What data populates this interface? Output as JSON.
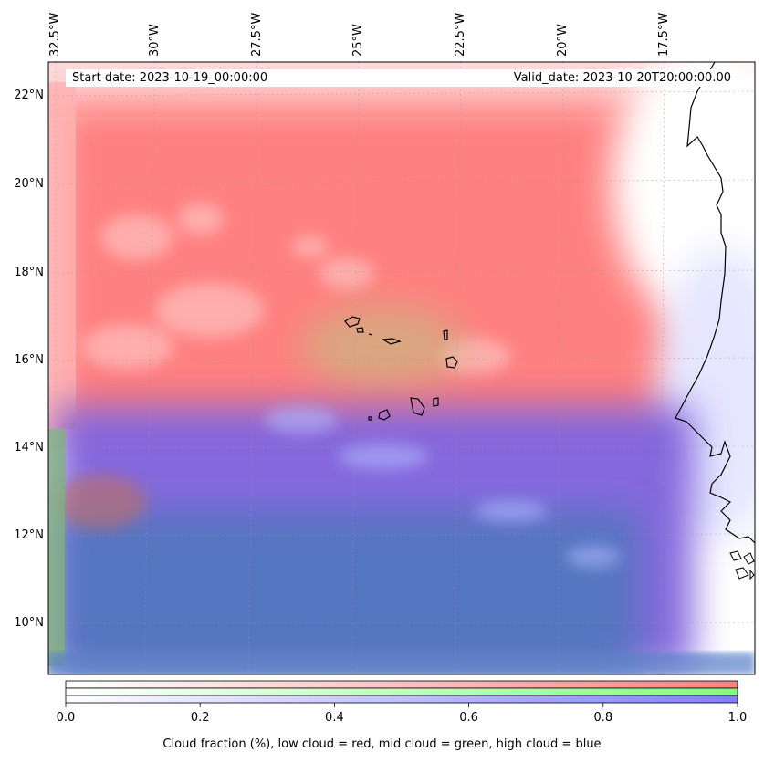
{
  "header": {
    "start_date": "Start date: 2023-10-19_00:00:00",
    "valid_date": "Valid_date: 2023-10-20T20:00:00.00"
  },
  "map": {
    "type": "cloud fraction composite",
    "projection": "lat-lon",
    "lon_range": [
      -33.0,
      -16.0
    ],
    "lat_range": [
      8.8,
      22.8
    ],
    "longitude_ticks": [
      "32.5°W",
      "30°W",
      "27.5°W",
      "25°W",
      "22.5°W",
      "20°W",
      "17.5°W"
    ],
    "latitude_ticks": [
      "22°N",
      "20°N",
      "18°N",
      "16°N",
      "14°N",
      "12°N",
      "10°N"
    ],
    "layers": {
      "low_cloud": "#ff7f7f",
      "mid_cloud": "#80e07f",
      "high_cloud": "#6a5fe0"
    },
    "gridlines": true,
    "features": [
      "West African coastline",
      "Cape Verde islands"
    ]
  },
  "colorbar": {
    "ticks": [
      "0.0",
      "0.2",
      "0.4",
      "0.6",
      "0.8",
      "1.0"
    ],
    "label": "Cloud fraction (%), low cloud = red, mid cloud = green, high cloud = blue",
    "colors": {
      "low": "#ff7f7f",
      "mid": "#80ff80",
      "high": "#7f7fff"
    }
  }
}
